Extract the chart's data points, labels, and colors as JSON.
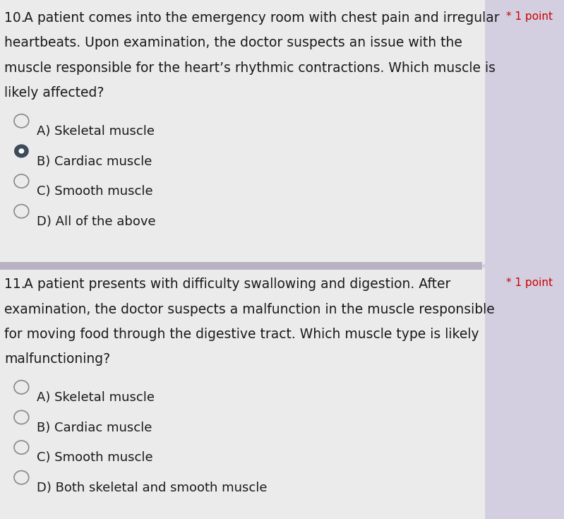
{
  "bg_color": "#c9c5d1",
  "card1_bg": "#ebebeb",
  "card2_bg": "#ebebeb",
  "divider_color": "#b8b2c4",
  "right_panel_color": "#d4cfe0",
  "q1_number": "10.",
  "q1_line1": "A patient comes into the emergency room with chest pain and irregular",
  "q1_line2": "heartbeats. Upon examination, the doctor suspects an issue with the",
  "q1_line3": "muscle responsible for the heart’s rhythmic contractions. Which muscle is",
  "q1_line4": "likely affected?",
  "q1_point_label": "* 1 point",
  "q1_options": [
    {
      "label": "A) Skeletal muscle",
      "selected": false
    },
    {
      "label": "B) Cardiac muscle",
      "selected": true
    },
    {
      "label": "C) Smooth muscle",
      "selected": false
    },
    {
      "label": "D) All of the above",
      "selected": false
    }
  ],
  "q2_number": "11.",
  "q2_line1": "A patient presents with difficulty swallowing and digestion. After",
  "q2_line2": "examination, the doctor suspects a malfunction in the muscle responsible",
  "q2_line3": "for moving food through the digestive tract. Which muscle type is likely",
  "q2_line4": "malfunctioning?",
  "q2_point_label": "* 1 point",
  "q2_options": [
    {
      "label": "A) Skeletal muscle",
      "selected": false
    },
    {
      "label": "B) Cardiac muscle",
      "selected": false
    },
    {
      "label": "C) Smooth muscle",
      "selected": false
    },
    {
      "label": "D) Both skeletal and smooth muscle",
      "selected": false
    }
  ],
  "text_color": "#1a1a1a",
  "point_color": "#cc0000",
  "circle_edge_color": "#888888",
  "selected_color": "#3d4a5c",
  "font_size_q": 13.5,
  "font_size_opt": 13.0,
  "font_size_point": 11.0
}
